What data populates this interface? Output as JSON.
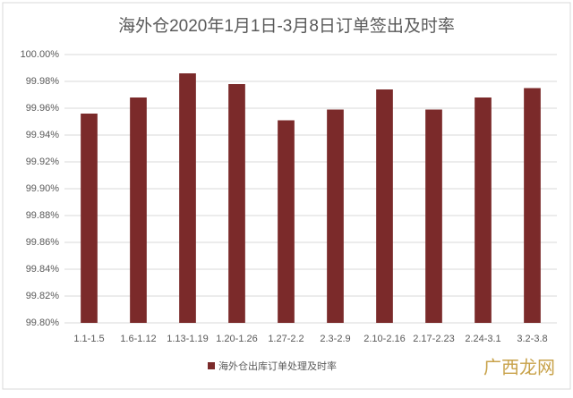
{
  "chart_data": {
    "type": "bar",
    "title": "海外仓2020年1月1日-3月8日订单签出及时率",
    "categories": [
      "1.1-1.5",
      "1.6-1.12",
      "1.13-1.19",
      "1.20-1.26",
      "1.27-2.2",
      "2.3-2.9",
      "2.10-2.16",
      "2.17-2.23",
      "2.24-3.1",
      "3.2-3.8"
    ],
    "series": [
      {
        "name": "海外仓出库订单处理及时率",
        "color": "#7b2a2a",
        "values": [
          99.956,
          99.968,
          99.986,
          99.978,
          99.951,
          99.959,
          99.974,
          99.959,
          99.968,
          99.975
        ]
      }
    ],
    "ylim": [
      99.8,
      100.0
    ],
    "yticks": [
      {
        "value": 99.8,
        "label": "99.80%"
      },
      {
        "value": 99.82,
        "label": "99.82%"
      },
      {
        "value": 99.84,
        "label": "99.84%"
      },
      {
        "value": 99.86,
        "label": "99.86%"
      },
      {
        "value": 99.88,
        "label": "99.88%"
      },
      {
        "value": 99.9,
        "label": "99.90%"
      },
      {
        "value": 99.92,
        "label": "99.92%"
      },
      {
        "value": 99.94,
        "label": "99.94%"
      },
      {
        "value": 99.96,
        "label": "99.96%"
      },
      {
        "value": 99.98,
        "label": "99.98%"
      },
      {
        "value": 100.0,
        "label": "100.00%"
      }
    ],
    "grid": true,
    "legend": "bottom",
    "watermark": "广西龙网"
  }
}
